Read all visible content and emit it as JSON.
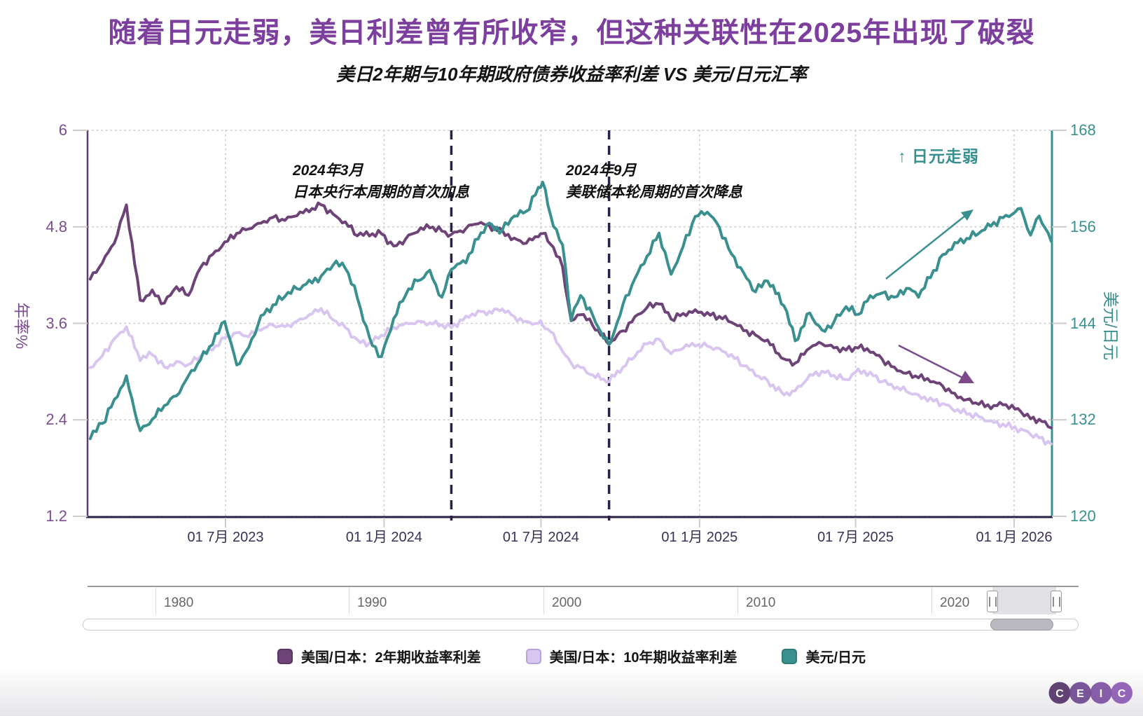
{
  "title": "随着日元走弱，美日利差曾有所收窄，但这种关联性在2025年出现了破裂",
  "subtitle": "美日2年期与10年期政府债券收益率利差 VS 美元/日元汇率",
  "colors": {
    "title": "#7d3f9e",
    "spread_2y": "#6e4378",
    "spread_10y": "#d9c6f0",
    "usdjpy": "#3a908e",
    "dashed_event_line": "#2b2145",
    "left_axis_line": "#5f3a6e",
    "left_tick_text": "#7b4c8e",
    "right_tick_text": "#3a908e",
    "x_tick_text": "#3b2f55",
    "bottom_axis_line": "#2b2145",
    "grid": "#cccccc"
  },
  "annotations": {
    "boj": {
      "line1": "2024年3月",
      "line2": "日本央行本周期的首次加息"
    },
    "fed": {
      "line1": "2024年9月",
      "line2": "美联储本轮周期的首次降息"
    },
    "yen_weak": "↑ 日元走弱"
  },
  "legend": [
    {
      "label": "美国/日本：2年期收益率利差",
      "color": "#6e4378",
      "border": "#5c3565"
    },
    {
      "label": "美国/日本：10年期收益率利差",
      "color": "#d9c6f0",
      "border": "#b7a3d8"
    },
    {
      "label": "美元/日元",
      "color": "#3a908e",
      "border": "#2f7b79"
    }
  ],
  "navigator": {
    "labels": [
      "1980",
      "1990",
      "2000",
      "2010",
      "2020"
    ]
  },
  "logo": {
    "letters": [
      "C",
      "E",
      "I",
      "C"
    ],
    "circle_colors": [
      "#4b2a61",
      "#67408a",
      "#76489c",
      "#8652ae"
    ]
  },
  "chart_data": {
    "type": "line",
    "left_axis": {
      "label": "年率%",
      "range": [
        1.2,
        6
      ],
      "ticks": [
        6,
        4.8,
        3.6,
        2.4,
        1.2
      ]
    },
    "right_axis": {
      "label": "美元/日元",
      "range": [
        120,
        168
      ],
      "ticks": [
        168,
        156,
        144,
        132,
        120
      ]
    },
    "x_ticks": [
      {
        "date": "2023-07-01",
        "label": "01 7月 2023"
      },
      {
        "date": "2024-01-01",
        "label": "01 1月 2024"
      },
      {
        "date": "2024-07-01",
        "label": "01 7月 2024"
      },
      {
        "date": "2025-01-01",
        "label": "01 1月 2025"
      },
      {
        "date": "2025-07-01",
        "label": "01 7月 2025"
      },
      {
        "date": "2026-01-01",
        "label": "01 1月 2026"
      }
    ],
    "events": [
      {
        "date": "2024-03-19",
        "annotation": "boj"
      },
      {
        "date": "2024-09-18",
        "annotation": "fed"
      }
    ],
    "x": [
      "2023-01-25",
      "2023-02-08",
      "2023-02-22",
      "2023-03-08",
      "2023-03-24",
      "2023-04-07",
      "2023-04-21",
      "2023-05-05",
      "2023-05-19",
      "2023-06-02",
      "2023-06-16",
      "2023-06-30",
      "2023-07-14",
      "2023-07-28",
      "2023-08-11",
      "2023-08-25",
      "2023-09-08",
      "2023-09-22",
      "2023-10-06",
      "2023-10-20",
      "2023-11-03",
      "2023-11-17",
      "2023-12-01",
      "2023-12-15",
      "2023-12-29",
      "2024-01-12",
      "2024-01-26",
      "2024-02-09",
      "2024-02-23",
      "2024-03-08",
      "2024-03-19",
      "2024-04-05",
      "2024-04-19",
      "2024-04-29",
      "2024-05-17",
      "2024-05-31",
      "2024-06-14",
      "2024-06-28",
      "2024-07-03",
      "2024-07-12",
      "2024-07-26",
      "2024-08-05",
      "2024-08-16",
      "2024-08-30",
      "2024-09-18",
      "2024-10-04",
      "2024-10-18",
      "2024-11-01",
      "2024-11-15",
      "2024-11-29",
      "2024-12-13",
      "2024-12-27",
      "2025-01-10",
      "2025-01-24",
      "2025-02-07",
      "2025-02-21",
      "2025-03-07",
      "2025-03-21",
      "2025-04-09",
      "2025-04-22",
      "2025-05-09",
      "2025-05-23",
      "2025-06-06",
      "2025-06-20",
      "2025-07-04",
      "2025-07-18",
      "2025-08-01",
      "2025-08-15",
      "2025-08-29",
      "2025-09-12",
      "2025-09-26",
      "2025-10-10",
      "2025-10-24",
      "2025-11-07",
      "2025-11-21",
      "2025-12-05",
      "2025-12-19",
      "2026-01-09",
      "2026-01-20",
      "2026-01-30",
      "2026-02-13"
    ],
    "series": [
      {
        "name": "美国/日本：2年期收益率利差",
        "yaxis": "left",
        "color": "#6e4378",
        "values": [
          4.15,
          4.35,
          4.6,
          5.07,
          3.88,
          4.0,
          3.85,
          4.05,
          3.95,
          4.3,
          4.45,
          4.6,
          4.72,
          4.78,
          4.85,
          4.92,
          4.88,
          4.95,
          5.0,
          5.08,
          4.95,
          4.85,
          4.7,
          4.7,
          4.72,
          4.55,
          4.65,
          4.75,
          4.8,
          4.75,
          4.7,
          4.78,
          4.85,
          4.82,
          4.75,
          4.65,
          4.6,
          4.68,
          4.72,
          4.6,
          4.3,
          3.62,
          3.72,
          3.58,
          3.35,
          3.5,
          3.68,
          3.8,
          3.85,
          3.65,
          3.72,
          3.76,
          3.72,
          3.68,
          3.62,
          3.52,
          3.45,
          3.38,
          3.15,
          3.1,
          3.3,
          3.35,
          3.3,
          3.27,
          3.3,
          3.25,
          3.15,
          3.05,
          2.98,
          2.93,
          2.88,
          2.82,
          2.72,
          2.65,
          2.6,
          2.55,
          2.6,
          2.5,
          2.42,
          2.4,
          2.3
        ]
      },
      {
        "name": "美国/日本：10年期收益率利差",
        "yaxis": "left",
        "color": "#d9c6f0",
        "values": [
          3.05,
          3.2,
          3.4,
          3.55,
          3.15,
          3.22,
          3.05,
          3.12,
          3.08,
          3.2,
          3.28,
          3.42,
          3.48,
          3.44,
          3.52,
          3.58,
          3.56,
          3.62,
          3.7,
          3.78,
          3.65,
          3.55,
          3.38,
          3.35,
          3.45,
          3.55,
          3.6,
          3.62,
          3.6,
          3.58,
          3.55,
          3.68,
          3.75,
          3.72,
          3.78,
          3.68,
          3.62,
          3.6,
          3.58,
          3.5,
          3.25,
          3.1,
          3.05,
          2.95,
          2.88,
          3.05,
          3.2,
          3.35,
          3.4,
          3.22,
          3.3,
          3.33,
          3.32,
          3.28,
          3.2,
          3.08,
          2.96,
          2.88,
          2.72,
          2.76,
          2.95,
          3.0,
          2.95,
          2.9,
          3.02,
          2.98,
          2.88,
          2.8,
          2.76,
          2.7,
          2.66,
          2.6,
          2.52,
          2.48,
          2.44,
          2.38,
          2.34,
          2.28,
          2.22,
          2.18,
          2.1
        ]
      },
      {
        "name": "美元/日元",
        "yaxis": "right",
        "color": "#3a908e",
        "values": [
          129.8,
          131.5,
          134.5,
          137.3,
          130.6,
          132.0,
          133.8,
          135.0,
          137.5,
          139.5,
          141.5,
          144.3,
          138.8,
          141.0,
          144.8,
          146.2,
          147.5,
          148.3,
          149.2,
          149.8,
          151.4,
          151.0,
          147.2,
          142.1,
          139.8,
          144.5,
          147.7,
          149.3,
          150.5,
          147.1,
          150.8,
          151.7,
          154.6,
          156.3,
          155.6,
          157.3,
          157.9,
          160.8,
          161.7,
          157.4,
          153.8,
          144.5,
          147.6,
          144.9,
          141.2,
          146.3,
          149.5,
          152.3,
          155.2,
          150.1,
          153.6,
          157.2,
          157.9,
          155.9,
          152.7,
          150.2,
          148.0,
          149.3,
          146.3,
          141.8,
          145.3,
          143.0,
          144.2,
          146.0,
          145.1,
          147.4,
          147.8,
          147.1,
          148.4,
          147.4,
          149.8,
          152.4,
          153.9,
          154.5,
          155.3,
          156.2,
          157.1,
          158.3,
          154.9,
          157.4,
          154.2
        ]
      }
    ]
  }
}
